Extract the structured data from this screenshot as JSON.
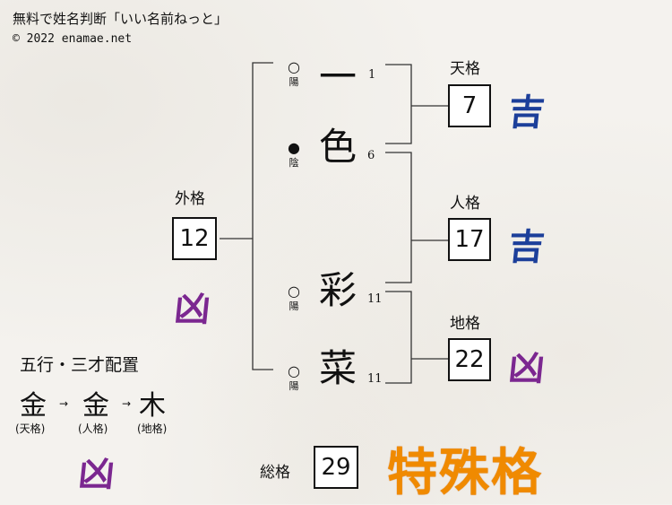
{
  "header": {
    "title": "無料で姓名判断「いい名前ねっと」",
    "copyright": "© 2022 enamae.net"
  },
  "characters": [
    {
      "char": "一",
      "strokes": "1",
      "yinyang_mark": "○",
      "yinyang": "陽"
    },
    {
      "char": "色",
      "strokes": "6",
      "yinyang_mark": "●",
      "yinyang": "陰"
    },
    {
      "char": "彩",
      "strokes": "11",
      "yinyang_mark": "○",
      "yinyang": "陽"
    },
    {
      "char": "菜",
      "strokes": "11",
      "yinyang_mark": "○",
      "yinyang": "陽"
    }
  ],
  "kaku": {
    "tenkaku": {
      "label": "天格",
      "value": "7",
      "fortune": "吉"
    },
    "jinkaku": {
      "label": "人格",
      "value": "17",
      "fortune": "吉"
    },
    "chikaku": {
      "label": "地格",
      "value": "22",
      "fortune": "凶"
    },
    "gaikaku": {
      "label": "外格",
      "value": "12",
      "fortune": "凶"
    },
    "soukaku": {
      "label": "総格",
      "value": "29",
      "fortune": "特殊格"
    }
  },
  "gogyo": {
    "title": "五行・三才配置",
    "elements": [
      {
        "element": "金",
        "sub": "(天格)"
      },
      {
        "element": "金",
        "sub": "(人格)"
      },
      {
        "element": "木",
        "sub": "(地格)"
      }
    ],
    "arrow": "→",
    "fortune": "凶"
  },
  "colors": {
    "good": "#1c3f9a",
    "bad": "#7b2790",
    "special": "#f08a00"
  }
}
